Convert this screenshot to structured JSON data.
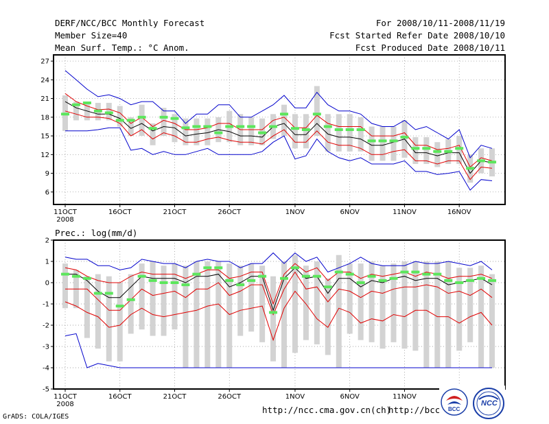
{
  "header": {
    "title": "DERF/NCC/BCC Monthly Forecast",
    "member_size": "Member Size=40",
    "variable": "Mean Surf. Temp.: °C Anom.",
    "period": "For 2008/10/11-2008/11/19",
    "start_ref": "Fcst Started Refer Date 2008/10/10",
    "produced": "Fcst Produced Date 2008/10/11"
  },
  "footer": {
    "grads": "GrADS: COLA/IGES",
    "url1": "http://ncc.cma.gov.cn(ch)",
    "url2": "http://bcc.c"
  },
  "logos": {
    "bcc": "BCC",
    "ncc": "NCC"
  },
  "colors": {
    "box": "#d3d3d3",
    "median": "#5ce65c",
    "mean": "#000000",
    "sd": "#e00000",
    "extreme": "#0000cc",
    "frame": "#000000",
    "grid": "#888888"
  },
  "chart_data": [
    {
      "type": "line",
      "title": "Mean Surf. Temp.: °C Anom.",
      "ylim": [
        4,
        28
      ],
      "yticks": [
        "27",
        "24",
        "21",
        "18",
        "15",
        "12",
        "9",
        "6"
      ],
      "ytick_values": [
        27,
        24,
        21,
        18,
        15,
        12,
        9,
        6
      ],
      "xticks": [
        {
          "day": 0,
          "label": "11OCT",
          "sub": "2008"
        },
        {
          "day": 5,
          "label": "16OCT"
        },
        {
          "day": 10,
          "label": "21OCT"
        },
        {
          "day": 15,
          "label": "26OCT"
        },
        {
          "day": 21,
          "label": "1NOV"
        },
        {
          "day": 26,
          "label": "6NOV"
        },
        {
          "day": 31,
          "label": "11NOV"
        },
        {
          "day": 36,
          "label": "16NOV"
        }
      ],
      "series": [
        {
          "name": "max",
          "values": [
            25.5,
            24,
            22.5,
            21.3,
            21.6,
            21,
            20,
            20.5,
            20.5,
            19,
            19,
            17,
            18.5,
            18.5,
            20,
            20,
            18,
            18,
            19,
            20,
            21.5,
            19.5,
            19.5,
            22,
            20,
            19,
            19,
            18.5,
            17,
            16.5,
            16.5,
            17.5,
            16,
            16.5,
            15.5,
            14.5,
            16,
            11.5,
            13.5,
            13
          ]
        },
        {
          "name": "sd_upper",
          "values": [
            21.8,
            20.5,
            19.8,
            19.2,
            19.3,
            18.7,
            17,
            18,
            16.5,
            17.5,
            17,
            16,
            16,
            16.3,
            17,
            17,
            16,
            16,
            16,
            17.5,
            18,
            16.3,
            16.3,
            18.3,
            17,
            16.5,
            16.5,
            16.5,
            15,
            15,
            15,
            15.5,
            13.5,
            13.5,
            12.8,
            13,
            13.5,
            10,
            11.5,
            11
          ]
        },
        {
          "name": "mean",
          "values": [
            20.5,
            19.5,
            19,
            18.5,
            18.5,
            17.8,
            16.2,
            17,
            15.8,
            16.5,
            16.3,
            15,
            15.3,
            15.5,
            16,
            15.7,
            15,
            15,
            14.8,
            16.5,
            17,
            15.2,
            15.2,
            17,
            15.3,
            14.8,
            14.8,
            14.5,
            13.5,
            13.5,
            14,
            14.5,
            12.3,
            12.3,
            11.8,
            12.3,
            12.3,
            9,
            11,
            10.7
          ]
        },
        {
          "name": "sd_lower",
          "values": [
            19,
            18.5,
            18,
            18,
            17.8,
            17,
            15,
            16,
            14.5,
            15.5,
            15,
            14,
            14,
            14.5,
            14.8,
            14.3,
            14,
            14,
            13.7,
            15,
            16,
            14,
            14,
            15.8,
            14,
            13.5,
            13.5,
            13,
            12,
            12,
            12.5,
            12.8,
            11,
            11,
            10.5,
            11,
            11,
            8,
            10,
            9.8
          ]
        },
        {
          "name": "min",
          "values": [
            15.8,
            15.8,
            15.8,
            16,
            16.3,
            16.3,
            12.7,
            13,
            12,
            12.5,
            12,
            12,
            12.5,
            13,
            12,
            12,
            12,
            12,
            12.5,
            14,
            15,
            11.3,
            11.8,
            14.5,
            12.5,
            11.5,
            11,
            11.5,
            10.5,
            10.5,
            10.5,
            11,
            9.3,
            9.3,
            8.8,
            9,
            9.3,
            6.3,
            8,
            7.8
          ]
        },
        {
          "name": "median",
          "values": [
            18.5,
            20,
            20.3,
            19,
            18.7,
            17.5,
            17.5,
            18,
            16.2,
            18,
            17.8,
            16.3,
            16.5,
            16.5,
            15.5,
            16.5,
            16.5,
            16.5,
            15.5,
            16.5,
            18.5,
            16.2,
            16,
            18.5,
            16.5,
            16,
            16,
            16,
            14.2,
            14.2,
            14.2,
            14.8,
            13,
            13,
            12.5,
            12.5,
            13,
            9.8,
            11,
            10.8
          ]
        },
        {
          "name": "box_high",
          "values": [
            21.5,
            20.5,
            20.5,
            20.3,
            20.3,
            19.8,
            18,
            20,
            17,
            19.5,
            18.5,
            17.8,
            17.8,
            17.8,
            18,
            19,
            18.5,
            18,
            17.8,
            18.5,
            20,
            18.5,
            18.5,
            23,
            18.5,
            18.5,
            18.5,
            18,
            16.5,
            16.5,
            16.5,
            17.5,
            14.8,
            14.8,
            14,
            14.5,
            15,
            12,
            13,
            13
          ]
        },
        {
          "name": "box_low",
          "values": [
            15.8,
            17.5,
            17.5,
            17.5,
            17.5,
            16.5,
            15,
            15,
            13.5,
            15,
            14,
            13.5,
            13.5,
            13.5,
            14,
            14,
            13.5,
            13.5,
            13.5,
            14.5,
            15,
            13,
            13,
            15,
            12.5,
            12.5,
            12.5,
            12.5,
            11,
            11,
            11,
            11.5,
            10.5,
            10.5,
            10,
            10.5,
            10.5,
            7.5,
            9,
            8.5
          ]
        }
      ]
    },
    {
      "type": "line",
      "title": "Prec.: log(mm/d)",
      "ylim": [
        -5,
        2
      ],
      "yticks": [
        "2",
        "1",
        "0",
        "-1",
        "-2",
        "-3",
        "-4",
        "-5"
      ],
      "ytick_values": [
        2,
        1,
        0,
        -1,
        -2,
        -3,
        -4,
        -5
      ],
      "xticks": [
        {
          "day": 0,
          "label": "11OCT",
          "sub": "2008"
        },
        {
          "day": 5,
          "label": "16OCT"
        },
        {
          "day": 10,
          "label": "21OCT"
        },
        {
          "day": 15,
          "label": "26OCT"
        },
        {
          "day": 21,
          "label": "1NOV"
        },
        {
          "day": 26,
          "label": "6NOV"
        },
        {
          "day": 31,
          "label": "11NOV"
        },
        {
          "day": 36,
          "label": "16NOV"
        }
      ],
      "series": [
        {
          "name": "max",
          "values": [
            1.2,
            1.1,
            1.1,
            0.8,
            0.8,
            0.6,
            0.7,
            1.1,
            1,
            0.9,
            0.9,
            0.7,
            1,
            1.1,
            1,
            1,
            0.7,
            0.9,
            0.9,
            1.4,
            0.9,
            1.4,
            1,
            1.2,
            0.5,
            0.7,
            0.9,
            1.2,
            0.9,
            0.8,
            0.8,
            0.8,
            1,
            0.9,
            0.9,
            1,
            0.9,
            0.8,
            1,
            0.6
          ]
        },
        {
          "name": "sd_upper",
          "values": [
            0.7,
            0.6,
            0.3,
            0.1,
            0,
            0,
            0.3,
            0.5,
            0.4,
            0.4,
            0.4,
            0.2,
            0.4,
            0.6,
            0.6,
            0.2,
            0.3,
            0.5,
            0.5,
            -1,
            0.4,
            0.9,
            0.5,
            0.7,
            0.1,
            0.5,
            0.5,
            0.2,
            0.4,
            0.3,
            0.4,
            0.5,
            0.3,
            0.5,
            0.4,
            0.2,
            0.3,
            0.3,
            0.4,
            0.2
          ]
        },
        {
          "name": "mean",
          "values": [
            0.4,
            0.4,
            0.1,
            -0.4,
            -0.7,
            -0.7,
            -0.2,
            0.3,
            0.2,
            0.2,
            0.2,
            0,
            0.3,
            0.3,
            0.4,
            -0.2,
            0,
            0.3,
            0.3,
            -1.3,
            0.2,
            0.7,
            0.2,
            0.3,
            -0.5,
            0.2,
            0.2,
            -0.2,
            0.1,
            0,
            0.2,
            0.3,
            0.1,
            0.2,
            0.2,
            -0.1,
            0,
            0.1,
            0.2,
            -0.1
          ]
        },
        {
          "name": "sd_lower",
          "values": [
            -0.3,
            -0.3,
            -0.3,
            -0.8,
            -1.3,
            -1.3,
            -0.8,
            -0.3,
            -0.6,
            -0.5,
            -0.4,
            -0.7,
            -0.3,
            -0.3,
            0,
            -0.6,
            -0.4,
            -0.1,
            -0.1,
            -1.5,
            -0.3,
            0.5,
            -0.3,
            -0.2,
            -0.9,
            -0.3,
            -0.4,
            -0.7,
            -0.4,
            -0.5,
            -0.3,
            -0.2,
            -0.2,
            -0.1,
            -0.2,
            -0.5,
            -0.4,
            -0.6,
            -0.3,
            -0.7
          ]
        },
        {
          "name": "sd_lower2",
          "values": [
            -0.9,
            -1.1,
            -1.4,
            -1.6,
            -2.1,
            -2,
            -1.5,
            -1.2,
            -1.5,
            -1.6,
            -1.5,
            -1.4,
            -1.3,
            -1.1,
            -1,
            -1.5,
            -1.3,
            -1.2,
            -1.1,
            -2.7,
            -1.2,
            -0.4,
            -1,
            -1.7,
            -2.1,
            -1.2,
            -1.4,
            -1.9,
            -1.7,
            -1.8,
            -1.5,
            -1.6,
            -1.3,
            -1.3,
            -1.6,
            -1.6,
            -1.9,
            -1.6,
            -1.4,
            -2
          ]
        },
        {
          "name": "min",
          "values": [
            -2.5,
            -2.4,
            -4,
            -3.8,
            -3.9,
            -4,
            -4,
            -4,
            -4,
            -4,
            -4,
            -4,
            -4,
            -4,
            -4,
            -4,
            -4,
            -4,
            -4,
            -4,
            -4,
            -4,
            -4,
            -4,
            -4,
            -4,
            -4,
            -4,
            -4,
            -4,
            -4,
            -4,
            -4,
            -4,
            -4,
            -4,
            -4,
            -4,
            -4,
            -4
          ]
        },
        {
          "name": "median",
          "values": [
            0.4,
            0.3,
            0.2,
            -0.5,
            -0.5,
            -1.1,
            -0.8,
            0.3,
            0.1,
            0,
            0,
            -0.1,
            0.4,
            0.7,
            0.7,
            0.1,
            -0.1,
            0.1,
            0.3,
            -1.4,
            0.2,
            0.7,
            0.3,
            0.3,
            -0.2,
            0.5,
            0.4,
            0,
            0.3,
            0.1,
            0.2,
            0.5,
            0.5,
            0.4,
            0.4,
            0.1,
            0,
            0.1,
            0.2,
            0.1
          ]
        },
        {
          "name": "box_high",
          "values": [
            0.9,
            0.6,
            0.3,
            0.4,
            0.3,
            0,
            0.4,
            0.9,
            1,
            0.8,
            0.9,
            0.8,
            1,
            1,
            1,
            0.9,
            0.8,
            0.9,
            0.8,
            0.3,
            1,
            1.3,
            0.8,
            1,
            0.2,
            1.3,
            0.9,
            0.9,
            1,
            0.8,
            0.9,
            1,
            1,
            1,
            1,
            1,
            0.7,
            0.7,
            0.8,
            0.4
          ]
        },
        {
          "name": "box_low",
          "values": [
            -1.2,
            -1.2,
            -2.6,
            -3.1,
            -3.7,
            -3.7,
            -2.4,
            -2.2,
            -2.5,
            -2.5,
            -2.2,
            -4,
            -4,
            -4,
            -4,
            -4,
            -2.5,
            -2.3,
            -2.8,
            -3.7,
            -4,
            -3.3,
            -2.7,
            -2.9,
            -3.4,
            -4,
            -2.4,
            -2.7,
            -2.8,
            -3.1,
            -2.8,
            -3.1,
            -3.2,
            -4,
            -4,
            -4,
            -3.2,
            -2.8,
            -4,
            -4
          ]
        }
      ]
    }
  ]
}
